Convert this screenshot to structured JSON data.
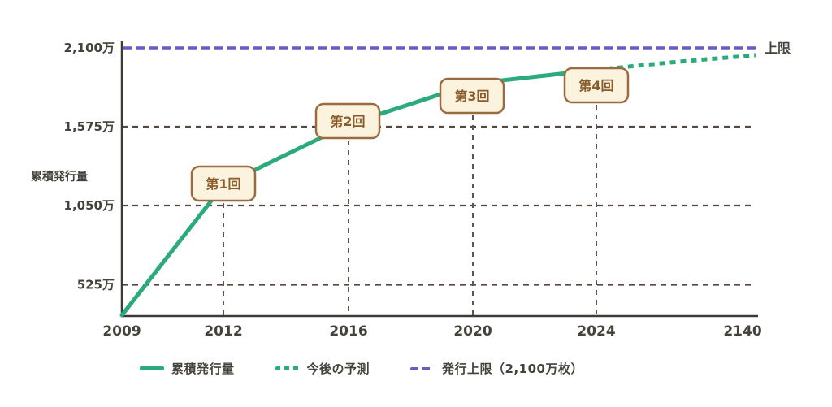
{
  "chart_data": {
    "type": "line",
    "title": "",
    "unit": "万枚",
    "ylabel": "累積発行量",
    "cap_label": "上限",
    "x_tick_labels": [
      "2009",
      "2012",
      "2016",
      "2020",
      "2024",
      "2140"
    ],
    "x_tick_values": [
      2009,
      2012,
      2016,
      2020,
      2024,
      2140
    ],
    "y_tick_labels": [
      "2,100万",
      "1,575万",
      "1,050万",
      "525万"
    ],
    "y_tick_values": [
      2100,
      1575,
      1050,
      525
    ],
    "ylim": [
      0,
      2100
    ],
    "grid": true,
    "legend_position": "bottom",
    "series": [
      {
        "name": "累積発行量",
        "style": "solid",
        "color": "#2BAB7C",
        "x": [
          2009,
          2012,
          2016,
          2020,
          2024
        ],
        "values": [
          0,
          1050,
          1575,
          1837.5,
          1968.75
        ]
      },
      {
        "name": "今後の予測",
        "style": "dotted",
        "color": "#2BAB7C",
        "x": [
          2024,
          2140
        ],
        "values": [
          1968.75,
          2100
        ]
      },
      {
        "name": "発行上限（2,100万枚）",
        "style": "dashed",
        "color": "#655CC6",
        "value": 2100
      }
    ],
    "annotations": [
      {
        "label": "第1回",
        "x": 2012,
        "value": 1050
      },
      {
        "label": "第2回",
        "x": 2016,
        "value": 1575
      },
      {
        "label": "第3回",
        "x": 2020,
        "value": 1837.5
      },
      {
        "label": "第4回",
        "x": 2024,
        "value": 1968.75
      }
    ],
    "legend": [
      {
        "label": "累積発行量",
        "style": "solid",
        "color": "#2BAB7C"
      },
      {
        "label": "今後の予測",
        "style": "dotted",
        "color": "#2BAB7C"
      },
      {
        "label": "発行上限（2,100万枚）",
        "style": "dashed",
        "color": "#655CC6"
      }
    ]
  },
  "colors": {
    "line_green": "#2BAB7C",
    "cap_purple": "#655CC6",
    "text": "#45423C",
    "axis": "#3E3A34",
    "h_grid": "#564741",
    "v_grid": "#5B564E",
    "badge_bg": "#FCF3DF",
    "badge_border": "#9A6B3F",
    "badge_text": "#8A5B2B",
    "background": "#FFFFFF"
  }
}
